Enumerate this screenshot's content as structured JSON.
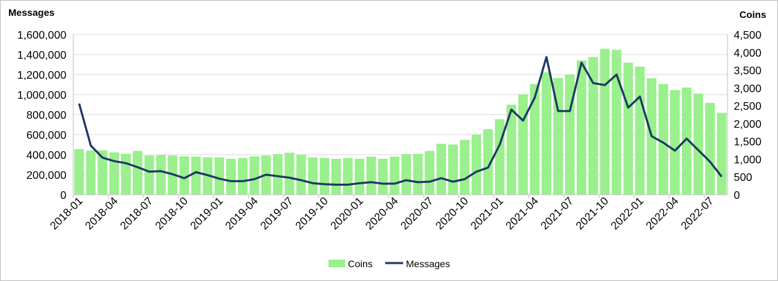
{
  "chart_data": {
    "type": "bar+line",
    "left_axis_title": "Messages",
    "right_axis_title": "Coins",
    "y_left": {
      "min": 0,
      "max": 1600000,
      "step": 200000,
      "tick_labels": [
        "0",
        "200,000",
        "400,000",
        "600,000",
        "800,000",
        "1,000,000",
        "1,200,000",
        "1,400,000",
        "1,600,000"
      ]
    },
    "y_right": {
      "min": 0,
      "max": 4500,
      "step": 500,
      "tick_labels": [
        "0",
        "500",
        "1,000",
        "1,500",
        "2,000",
        "2,500",
        "3,000",
        "3,500",
        "4,000",
        "4,500"
      ]
    },
    "x_tick_labels": [
      "2018-01",
      "2018-04",
      "2018-07",
      "2018-10",
      "2019-01",
      "2019-04",
      "2019-07",
      "2019-10",
      "2020-01",
      "2020-04",
      "2020-07",
      "2020-10",
      "2021-01",
      "2021-04",
      "2021-07",
      "2021-10",
      "2022-01",
      "2022-04",
      "2022-07"
    ],
    "categories": [
      "2018-01",
      "2018-02",
      "2018-03",
      "2018-04",
      "2018-05",
      "2018-06",
      "2018-07",
      "2018-08",
      "2018-09",
      "2018-10",
      "2018-11",
      "2018-12",
      "2019-01",
      "2019-02",
      "2019-03",
      "2019-04",
      "2019-05",
      "2019-06",
      "2019-07",
      "2019-08",
      "2019-09",
      "2019-10",
      "2019-11",
      "2019-12",
      "2020-01",
      "2020-02",
      "2020-03",
      "2020-04",
      "2020-05",
      "2020-06",
      "2020-07",
      "2020-08",
      "2020-09",
      "2020-10",
      "2020-11",
      "2020-12",
      "2021-01",
      "2021-02",
      "2021-03",
      "2021-04",
      "2021-05",
      "2021-06",
      "2021-07",
      "2021-08",
      "2021-09",
      "2021-10",
      "2021-11",
      "2021-12",
      "2022-01",
      "2022-02",
      "2022-03",
      "2022-04",
      "2022-05",
      "2022-06",
      "2022-07",
      "2022-08"
    ],
    "series": [
      {
        "name": "Coins",
        "type": "bar",
        "axis": "right",
        "color": "#99f08c",
        "values": [
          1280,
          1240,
          1250,
          1190,
          1150,
          1230,
          1100,
          1110,
          1100,
          1080,
          1070,
          1050,
          1050,
          1010,
          1030,
          1080,
          1100,
          1140,
          1180,
          1120,
          1050,
          1030,
          1010,
          1030,
          1010,
          1070,
          1010,
          1070,
          1140,
          1150,
          1230,
          1430,
          1410,
          1540,
          1690,
          1840,
          2120,
          2530,
          2820,
          3110,
          3440,
          3280,
          3370,
          3770,
          3870,
          4100,
          4070,
          3710,
          3600,
          3270,
          3110,
          2940,
          3010,
          2840,
          2580,
          2300
        ]
      },
      {
        "name": "Messages",
        "type": "line",
        "axis": "left",
        "color": "#1f3864",
        "values": [
          910000,
          490000,
          370000,
          335000,
          315000,
          275000,
          230000,
          235000,
          205000,
          165000,
          225000,
          195000,
          160000,
          135000,
          135000,
          155000,
          200000,
          185000,
          170000,
          145000,
          115000,
          105000,
          100000,
          100000,
          115000,
          125000,
          110000,
          110000,
          145000,
          125000,
          130000,
          165000,
          130000,
          155000,
          230000,
          270000,
          500000,
          850000,
          740000,
          970000,
          1375000,
          835000,
          835000,
          1320000,
          1115000,
          1095000,
          1200000,
          870000,
          980000,
          585000,
          520000,
          440000,
          560000,
          445000,
          330000,
          180000
        ]
      }
    ],
    "legend": {
      "position": "bottom",
      "entries": [
        "Coins",
        "Messages"
      ]
    },
    "grid": true
  }
}
